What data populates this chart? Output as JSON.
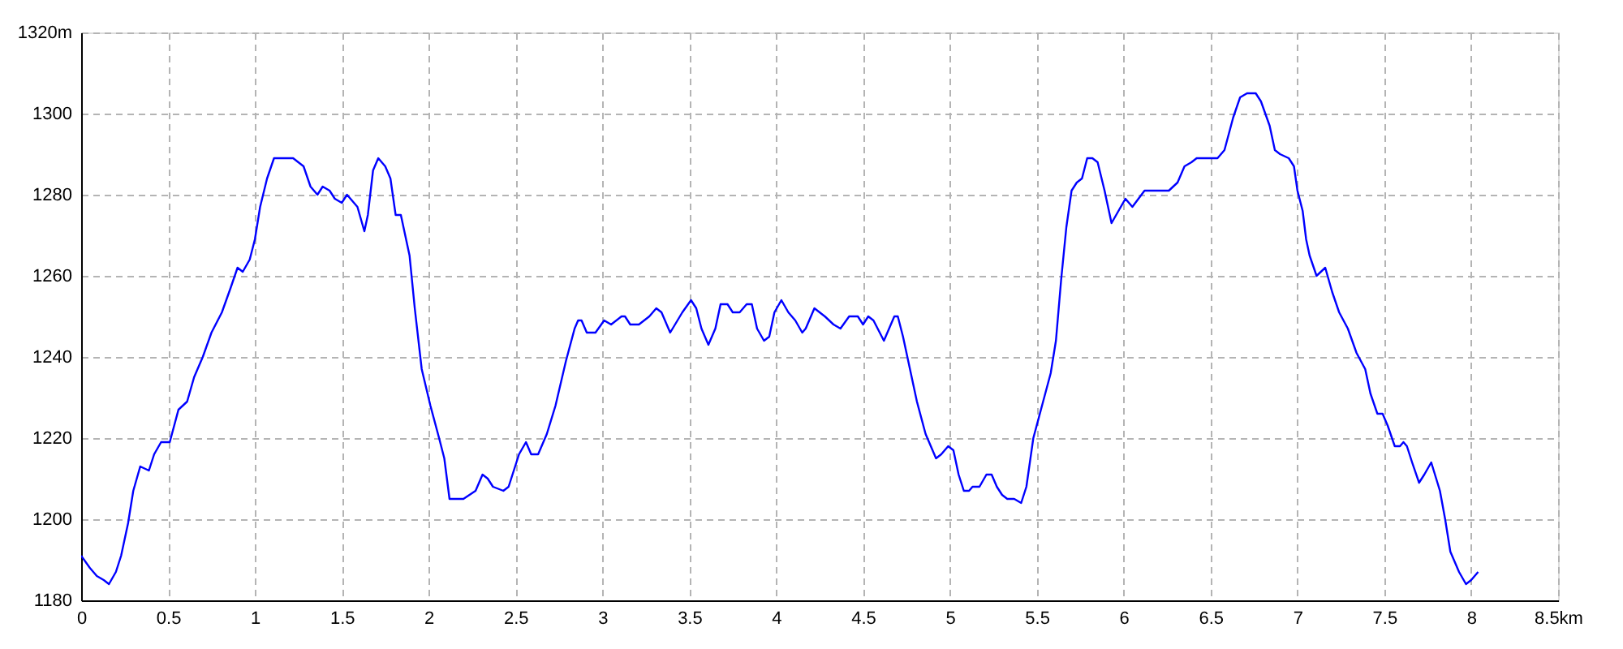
{
  "chart_data": {
    "type": "line",
    "color": "#0000ff",
    "line_style": "solid",
    "grid": true,
    "xlim": [
      0,
      8.5
    ],
    "ylim": [
      1180,
      1320
    ],
    "xticks": [
      0,
      0.5,
      1,
      1.5,
      2,
      2.5,
      3,
      3.5,
      4,
      4.5,
      5,
      5.5,
      6,
      6.5,
      7,
      7.5,
      8,
      {
        "value": 8.5,
        "label": "8.5km"
      }
    ],
    "yticks": [
      1180,
      1200,
      1220,
      1240,
      1260,
      1280,
      1300,
      {
        "value": 1320,
        "label": "1320m"
      }
    ],
    "x": [
      0.0,
      0.05,
      0.09,
      0.13,
      0.16,
      0.2,
      0.23,
      0.27,
      0.3,
      0.34,
      0.39,
      0.42,
      0.46,
      0.51,
      0.56,
      0.61,
      0.65,
      0.7,
      0.75,
      0.81,
      0.86,
      0.9,
      0.93,
      0.97,
      1.0,
      1.03,
      1.07,
      1.11,
      1.22,
      1.28,
      1.32,
      1.36,
      1.39,
      1.43,
      1.46,
      1.5,
      1.53,
      1.59,
      1.63,
      1.65,
      1.68,
      1.71,
      1.75,
      1.78,
      1.81,
      1.84,
      1.89,
      1.92,
      1.96,
      2.01,
      2.06,
      2.09,
      2.12,
      2.15,
      2.2,
      2.27,
      2.31,
      2.34,
      2.37,
      2.43,
      2.46,
      2.52,
      2.56,
      2.59,
      2.63,
      2.68,
      2.73,
      2.79,
      2.84,
      2.86,
      2.88,
      2.91,
      2.96,
      3.01,
      3.05,
      3.11,
      3.13,
      3.16,
      3.21,
      3.27,
      3.31,
      3.34,
      3.39,
      3.46,
      3.51,
      3.54,
      3.57,
      3.61,
      3.65,
      3.68,
      3.72,
      3.75,
      3.79,
      3.83,
      3.86,
      3.89,
      3.93,
      3.96,
      3.99,
      4.03,
      4.07,
      4.11,
      4.15,
      4.17,
      4.22,
      4.25,
      4.28,
      4.33,
      4.37,
      4.42,
      4.47,
      4.5,
      4.53,
      4.56,
      4.62,
      4.64,
      4.68,
      4.7,
      4.73,
      4.77,
      4.81,
      4.86,
      4.92,
      4.95,
      4.99,
      5.02,
      5.05,
      5.08,
      5.11,
      5.13,
      5.17,
      5.21,
      5.24,
      5.27,
      5.3,
      5.33,
      5.37,
      5.41,
      5.44,
      5.48,
      5.53,
      5.58,
      5.61,
      5.64,
      5.67,
      5.7,
      5.73,
      5.76,
      5.79,
      5.82,
      5.85,
      5.89,
      5.93,
      5.97,
      6.01,
      6.05,
      6.12,
      6.22,
      6.26,
      6.31,
      6.35,
      6.39,
      6.42,
      6.54,
      6.58,
      6.63,
      6.67,
      6.71,
      6.76,
      6.79,
      6.84,
      6.87,
      6.9,
      6.95,
      6.98,
      7.0,
      7.03,
      7.05,
      7.07,
      7.11,
      7.16,
      7.2,
      7.24,
      7.29,
      7.34,
      7.39,
      7.42,
      7.46,
      7.49,
      7.52,
      7.56,
      7.59,
      7.61,
      7.63,
      7.66,
      7.7,
      7.73,
      7.77,
      7.82,
      7.85,
      7.88,
      7.93,
      7.97,
      8.0,
      8.04
    ],
    "values": [
      1191,
      1188,
      1186,
      1185,
      1184,
      1187,
      1191,
      1199,
      1207,
      1213,
      1212,
      1216,
      1219,
      1219,
      1227,
      1229,
      1235,
      1240,
      1246,
      1251,
      1257,
      1262,
      1261,
      1264,
      1269,
      1277,
      1284,
      1289,
      1289,
      1287,
      1282,
      1280,
      1282,
      1281,
      1279,
      1278,
      1280,
      1277,
      1271,
      1275,
      1286,
      1289,
      1287,
      1284,
      1275,
      1275,
      1265,
      1252,
      1237,
      1228,
      1220,
      1215,
      1205,
      1205,
      1205,
      1207,
      1211,
      1210,
      1208,
      1207,
      1208,
      1216,
      1219,
      1216,
      1216,
      1221,
      1228,
      1239,
      1247,
      1249,
      1249,
      1246,
      1246,
      1249,
      1248,
      1250,
      1250,
      1248,
      1248,
      1250,
      1252,
      1251,
      1246,
      1251,
      1254,
      1252,
      1247,
      1243,
      1247,
      1253,
      1253,
      1251,
      1251,
      1253,
      1253,
      1247,
      1244,
      1245,
      1251,
      1254,
      1251,
      1249,
      1246,
      1247,
      1252,
      1251,
      1250,
      1248,
      1247,
      1250,
      1250,
      1248,
      1250,
      1249,
      1244,
      1246,
      1250,
      1250,
      1245,
      1237,
      1229,
      1221,
      1215,
      1216,
      1218,
      1217,
      1211,
      1207,
      1207,
      1208,
      1208,
      1211,
      1211,
      1208,
      1206,
      1205,
      1205,
      1204,
      1208,
      1220,
      1228,
      1236,
      1244,
      1259,
      1272,
      1281,
      1283,
      1284,
      1289,
      1289,
      1288,
      1281,
      1273,
      1276,
      1279,
      1277,
      1281,
      1281,
      1281,
      1283,
      1287,
      1288,
      1289,
      1289,
      1291,
      1299,
      1304,
      1305,
      1305,
      1303,
      1297,
      1291,
      1290,
      1289,
      1287,
      1281,
      1276,
      1269,
      1265,
      1260,
      1262,
      1256,
      1251,
      1247,
      1241,
      1237,
      1231,
      1226,
      1226,
      1223,
      1218,
      1218,
      1219,
      1218,
      1214,
      1209,
      1211,
      1214,
      1207,
      1200,
      1192,
      1187,
      1184,
      1185,
      1187
    ]
  }
}
